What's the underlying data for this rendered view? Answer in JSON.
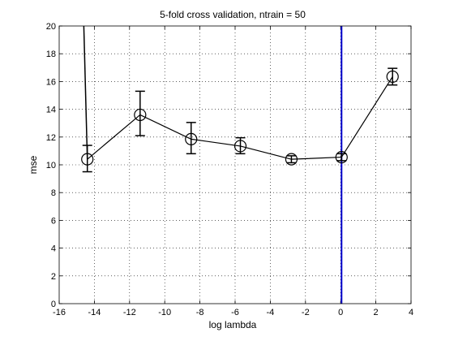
{
  "chart_data": {
    "type": "line",
    "title": "5-fold cross validation, ntrain = 50",
    "xlabel": "log lambda",
    "ylabel": "mse",
    "xlim": [
      -16,
      4
    ],
    "ylim": [
      0,
      20
    ],
    "xticks": [
      -16,
      -14,
      -12,
      -10,
      -8,
      -6,
      -4,
      -2,
      0,
      2,
      4
    ],
    "yticks": [
      0,
      2,
      4,
      6,
      8,
      10,
      12,
      14,
      16,
      18,
      20
    ],
    "xtick_labels": [
      "-16",
      "-14",
      "-12",
      "-10",
      "-8",
      "-6",
      "-4",
      "-2",
      "0",
      "2",
      "4"
    ],
    "ytick_labels": [
      "0",
      "2",
      "4",
      "6",
      "8",
      "10",
      "12",
      "14",
      "16",
      "18",
      "20"
    ],
    "grid": true,
    "points": [
      {
        "x": -14.4,
        "y": 10.4,
        "lo": 9.5,
        "hi": 11.4
      },
      {
        "x": -11.4,
        "y": 13.6,
        "lo": 12.1,
        "hi": 15.3
      },
      {
        "x": -8.5,
        "y": 11.85,
        "lo": 10.8,
        "hi": 13.05
      },
      {
        "x": -5.7,
        "y": 11.35,
        "lo": 10.8,
        "hi": 11.95
      },
      {
        "x": -2.8,
        "y": 10.4,
        "lo": 10.15,
        "hi": 10.65
      },
      {
        "x": 0.05,
        "y": 10.55,
        "lo": 10.3,
        "hi": 10.8
      },
      {
        "x": 2.95,
        "y": 16.35,
        "lo": 15.75,
        "hi": 16.95
      }
    ],
    "offscale_segment": {
      "x": [
        -14.4,
        -14.6
      ],
      "y": [
        10.4,
        20.0
      ]
    },
    "vline": {
      "x": 0.05,
      "color": "#0000cc"
    },
    "colors": {
      "line": "#000000",
      "vline": "#0000cc",
      "grid": "#000000"
    }
  }
}
